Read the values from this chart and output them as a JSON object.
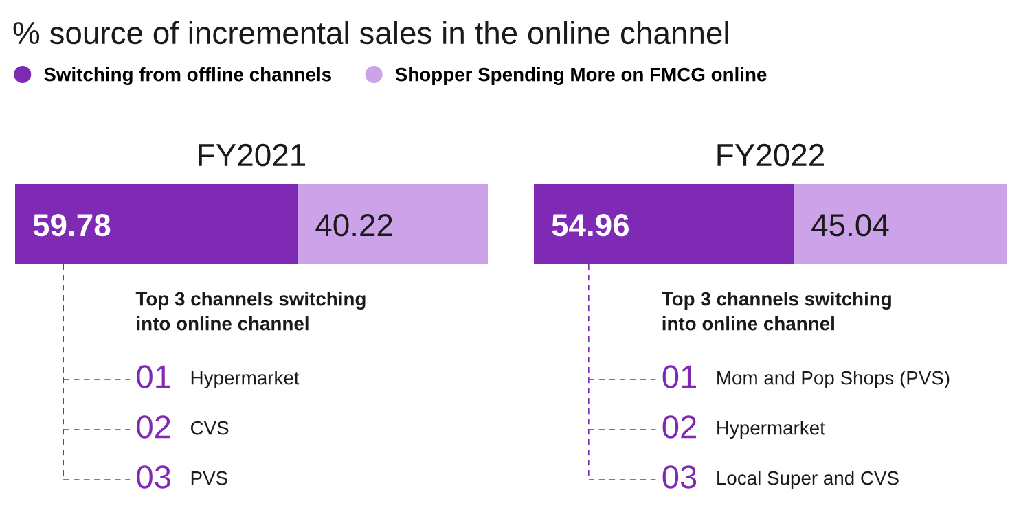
{
  "chart_data": [
    {
      "type": "bar",
      "orientation": "horizontal",
      "stacked": true,
      "title": "% source of incremental sales in the online channel",
      "subtitle": "FY2021",
      "categories": [
        null
      ],
      "legend": "top",
      "data_labels": true,
      "series": [
        {
          "name": "Switching from offline channels",
          "color": "#7e2ab4",
          "values": [
            59.78
          ]
        },
        {
          "name": "Shopper Spending More on FMCG online",
          "color": "#cca2e8",
          "values": [
            40.22
          ]
        }
      ],
      "annotations": [
        "Top 3 channels switching\ninto online channel",
        "01",
        "Hypermarket",
        "02",
        "CVS",
        "03",
        "PVS"
      ]
    },
    {
      "type": "bar",
      "orientation": "horizontal",
      "stacked": true,
      "subtitle": "FY2022",
      "categories": [
        null
      ],
      "data_labels": true,
      "series": [
        {
          "color": "#7e2ab4",
          "values": [
            54.96
          ]
        },
        {
          "color": "#cca2e8",
          "values": [
            45.04
          ]
        }
      ],
      "annotations": [
        "Top 3 channels switching\ninto online channel",
        "01",
        "Mom and Pop Shops (PVS)",
        "02",
        "Hypermarket",
        "03",
        "Local Super and CVS"
      ]
    }
  ]
}
